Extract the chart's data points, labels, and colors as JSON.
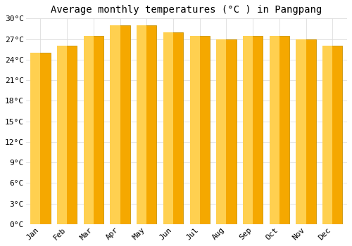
{
  "title": "Average monthly temperatures (°C ) in Pangpang",
  "months": [
    "Jan",
    "Feb",
    "Mar",
    "Apr",
    "May",
    "Jun",
    "Jul",
    "Aug",
    "Sep",
    "Oct",
    "Nov",
    "Dec"
  ],
  "values": [
    25.0,
    26.0,
    27.5,
    29.0,
    29.0,
    28.0,
    27.5,
    27.0,
    27.5,
    27.5,
    27.0,
    26.0
  ],
  "bar_color_outer": "#F5A800",
  "bar_color_inner": "#FFD050",
  "ylim": [
    0,
    30
  ],
  "yticks": [
    0,
    3,
    6,
    9,
    12,
    15,
    18,
    21,
    24,
    27,
    30
  ],
  "ytick_labels": [
    "0°C",
    "3°C",
    "6°C",
    "9°C",
    "12°C",
    "15°C",
    "18°C",
    "21°C",
    "24°C",
    "27°C",
    "30°C"
  ],
  "background_color": "#FFFFFF",
  "grid_color": "#DDDDDD",
  "bar_edge_color": "#C8940A",
  "title_fontsize": 10,
  "tick_fontsize": 8,
  "font_family": "monospace"
}
